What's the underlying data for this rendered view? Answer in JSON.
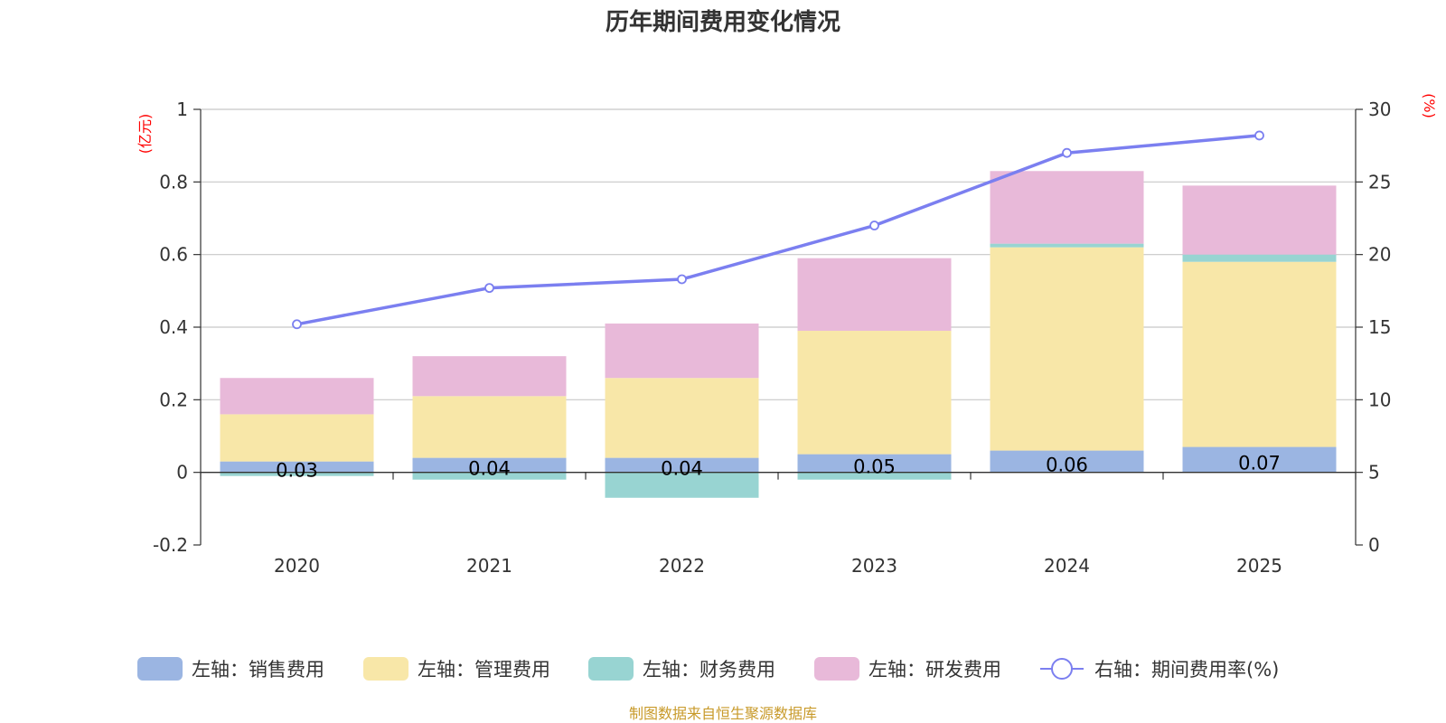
{
  "chart_data": {
    "type": "bar",
    "title": "历年期间费用变化情况",
    "categories": [
      "2020",
      "2021",
      "2022",
      "2023",
      "2024",
      "2025"
    ],
    "stacked": true,
    "left_axis": {
      "unit": "(亿元)",
      "ylim": [
        -0.2,
        1
      ],
      "ticks": [
        "-0.2",
        "0",
        "0.2",
        "0.4",
        "0.6",
        "0.8",
        "1"
      ]
    },
    "right_axis": {
      "unit": "(%)",
      "ylim": [
        0,
        30
      ],
      "ticks": [
        "0",
        "5",
        "10",
        "15",
        "20",
        "25",
        "30"
      ]
    },
    "series": [
      {
        "name": "左轴：销售费用",
        "axis": "left",
        "color": "#9bb5e2",
        "values": [
          0.03,
          0.04,
          0.04,
          0.05,
          0.06,
          0.07
        ],
        "labels": [
          "0.03",
          "0.04",
          "0.04",
          "0.05",
          "0.06",
          "0.07"
        ]
      },
      {
        "name": "左轴：管理费用",
        "axis": "left",
        "color": "#f8e7a8",
        "values": [
          0.13,
          0.17,
          0.22,
          0.34,
          0.56,
          0.51
        ]
      },
      {
        "name": "左轴：财务费用",
        "axis": "left",
        "color": "#98d4d2",
        "values": [
          -0.01,
          -0.02,
          -0.07,
          -0.02,
          0.01,
          0.02
        ]
      },
      {
        "name": "左轴：研发费用",
        "axis": "left",
        "color": "#e8b9d9",
        "values": [
          0.1,
          0.11,
          0.15,
          0.2,
          0.2,
          0.19
        ]
      },
      {
        "name": "右轴：期间费用率(%)",
        "axis": "right",
        "type": "line",
        "color": "#7b7ff0",
        "values": [
          15.2,
          17.7,
          18.3,
          22.0,
          27.0,
          28.2
        ]
      }
    ],
    "source": "制图数据来自恒生聚源数据库"
  }
}
